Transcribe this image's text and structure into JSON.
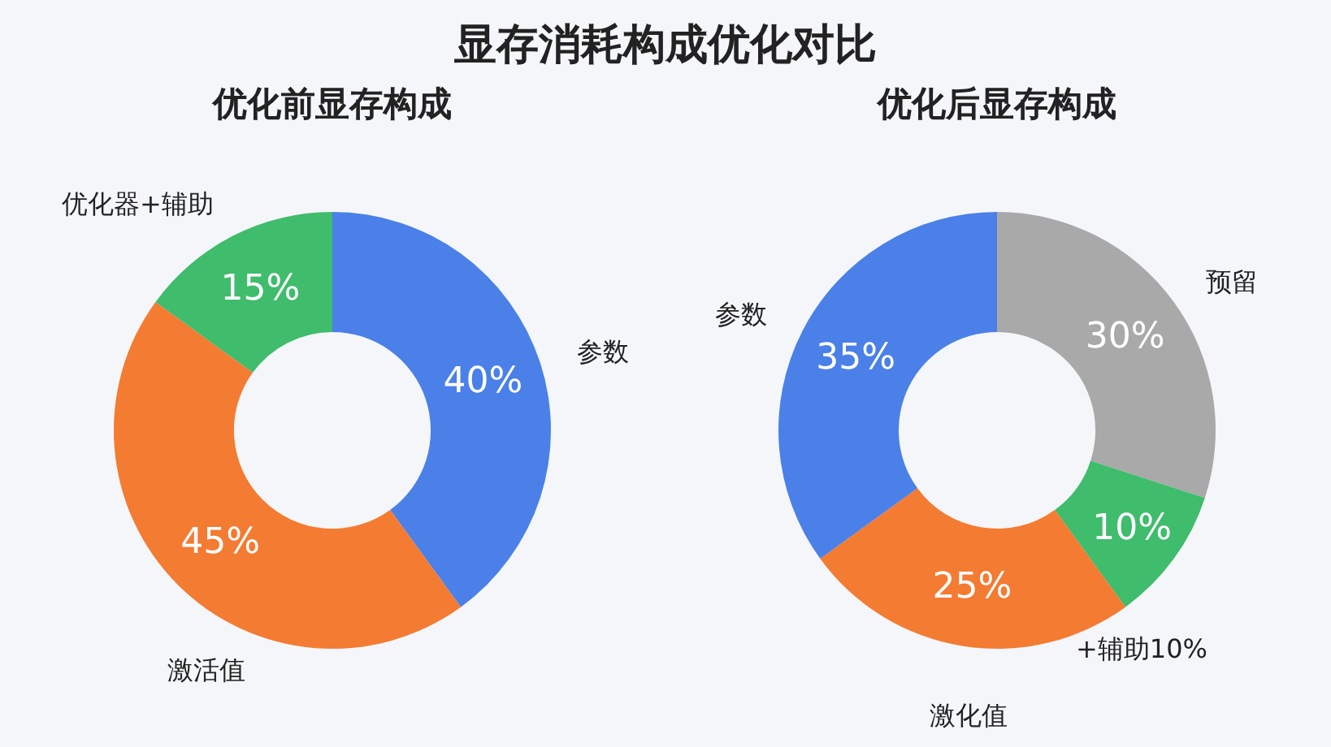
{
  "chart_data": [
    {
      "type": "donut",
      "title": "显存消耗构成优化对比",
      "subtitle": "优化前显存构成",
      "categories": [
        "参数",
        "激活值",
        "优化器+辅助"
      ],
      "values": [
        40,
        45,
        15
      ],
      "colors": [
        "#4a80e8",
        "#f47b32",
        "#3fbc6c"
      ],
      "value_labels": [
        "40%",
        "45%",
        "15%"
      ],
      "legend": false
    },
    {
      "type": "donut",
      "title": "优化后显存构成",
      "categories": [
        "预留",
        "+辅助10%",
        "激化值",
        "参数"
      ],
      "values": [
        30,
        10,
        25,
        35
      ],
      "colors": [
        "#a9a9a9",
        "#3fbc6c",
        "#f47b32",
        "#4a80e8"
      ],
      "value_labels": [
        "30%",
        "10%",
        "25%",
        "35%"
      ],
      "legend": false
    }
  ]
}
